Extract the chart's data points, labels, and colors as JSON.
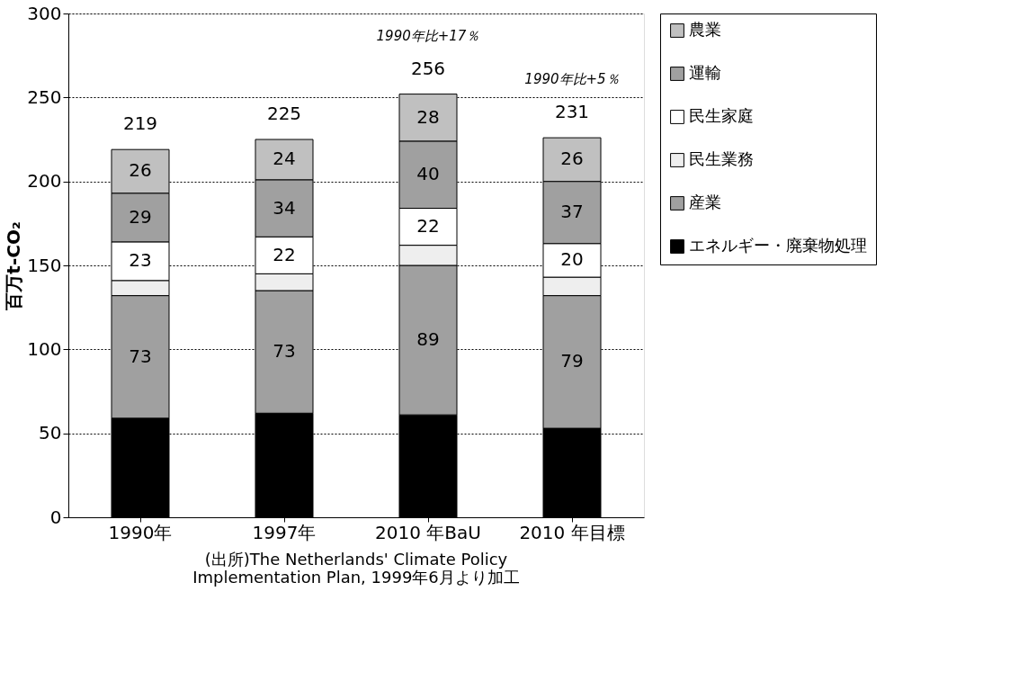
{
  "chart_data": {
    "type": "bar",
    "stacked": true,
    "ylabel": "百万t-CO₂",
    "categories": [
      "1990年",
      "1997年",
      "2010 年BaU",
      "2010 年目標"
    ],
    "series": [
      {
        "name": "エネルギー・廃棄物処理",
        "color": "#000000",
        "values": [
          59,
          62,
          61,
          53
        ]
      },
      {
        "name": "産業",
        "color": "#a0a0a0",
        "values": [
          73,
          73,
          89,
          79
        ],
        "value_labels": [
          "73",
          "73",
          "89",
          "79"
        ]
      },
      {
        "name": "民生業務",
        "color": "#eeeeee",
        "values": [
          9,
          10,
          12,
          11
        ]
      },
      {
        "name": "民生家庭",
        "color": "#ffffff",
        "values": [
          23,
          22,
          22,
          20
        ],
        "value_labels": [
          "23",
          "22",
          "22",
          "20"
        ]
      },
      {
        "name": "運輸",
        "color": "#a0a0a0",
        "values": [
          29,
          34,
          40,
          37
        ],
        "value_labels": [
          "29",
          "34",
          "40",
          "37"
        ]
      },
      {
        "name": "農業",
        "color": "#c0c0c0",
        "values": [
          26,
          24,
          28,
          26
        ],
        "value_labels": [
          "26",
          "24",
          "28",
          "26"
        ]
      }
    ],
    "ylim": [
      0,
      300
    ],
    "yticks": [
      0,
      50,
      100,
      150,
      200,
      250,
      300
    ],
    "grid": "y",
    "legend": "right",
    "annotations": [
      {
        "text": "219",
        "x": "1990年",
        "y": 219
      },
      {
        "text": "225",
        "x": "1997年",
        "y": 225
      },
      {
        "text": "256",
        "x": "2010 年BaU",
        "y": 252
      },
      {
        "text": "231",
        "x": "2010 年目標",
        "y": 226
      },
      "1990年比+17％",
      "1990年比+5％",
      "(出所)The Netherlands' Climate Policy\nImplementation Plan, 1999年6月より加工"
    ]
  }
}
